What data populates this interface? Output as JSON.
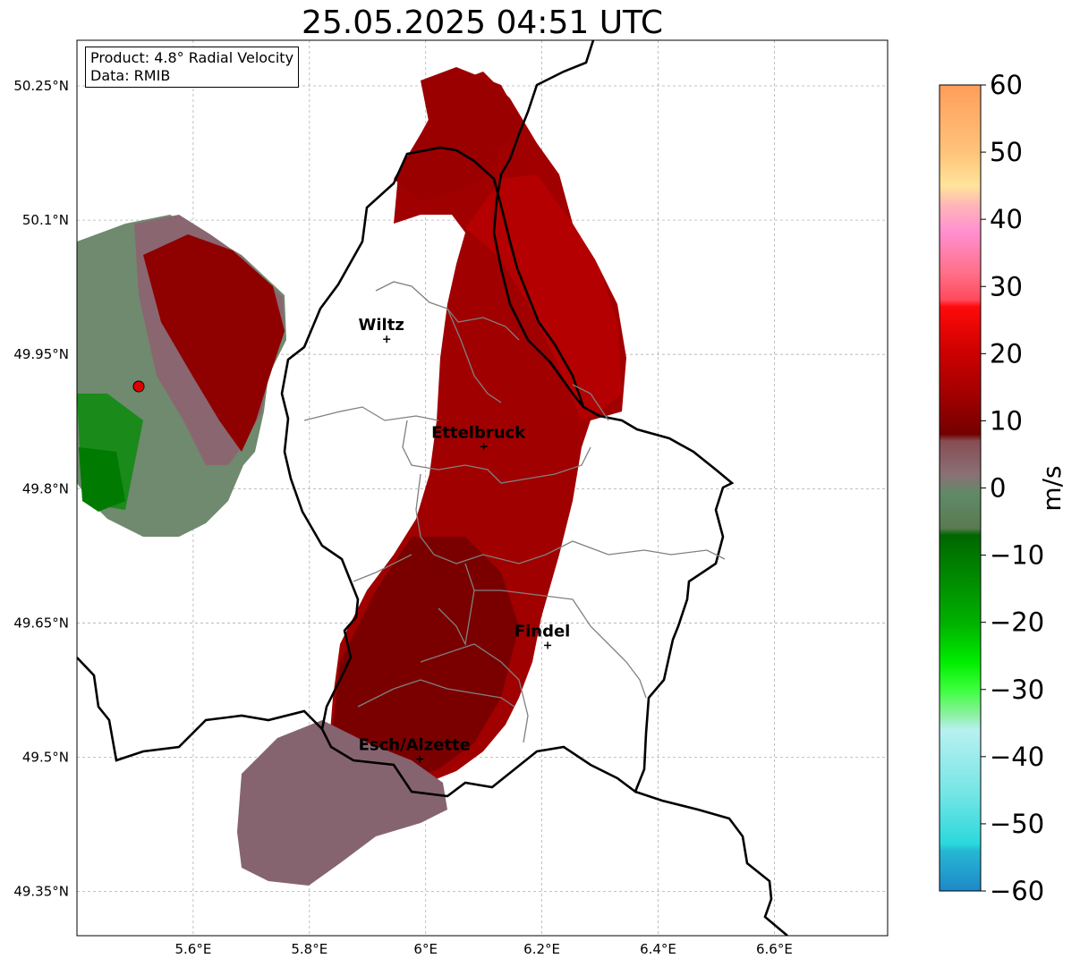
{
  "title": "25.05.2025 04:51 UTC",
  "info_box": {
    "product_line": "Product: 4.8° Radial Velocity",
    "data_line": "Data: RMIB"
  },
  "map": {
    "lon_ticks": [
      "5.6°E",
      "5.8°E",
      "6°E",
      "6.2°E",
      "6.4°E",
      "6.6°E"
    ],
    "lat_ticks": [
      "50.25°N",
      "50.1°N",
      "49.95°N",
      "49.8°N",
      "49.65°N",
      "49.5°N",
      "49.35°N"
    ],
    "cities": [
      {
        "name": "Wiltz",
        "lon": 5.933,
        "lat": 49.967
      },
      {
        "name": "Ettelbruck",
        "lon": 6.1,
        "lat": 49.847
      },
      {
        "name": "Findel",
        "lon": 6.21,
        "lat": 49.625
      },
      {
        "name": "Esch/Alzette",
        "lon": 5.99,
        "lat": 49.498
      }
    ],
    "radar_site": {
      "name": "radar-site",
      "lon": 5.505,
      "lat": 49.914
    },
    "colors": {
      "country_border": "#000000",
      "canton_border": "#808080",
      "grid": "#b0b0b0",
      "radar_marker": "#e00000"
    }
  },
  "colorbar": {
    "label": "m/s",
    "ticks": [
      "60",
      "50",
      "40",
      "30",
      "20",
      "10",
      "0",
      "−10",
      "−20",
      "−30",
      "−40",
      "−50",
      "−60"
    ],
    "range": [
      -60,
      60
    ],
    "stops": [
      {
        "v": 60,
        "c": "#ff9e5a"
      },
      {
        "v": 50,
        "c": "#ffc37a"
      },
      {
        "v": 45,
        "c": "#ffe49a"
      },
      {
        "v": 42,
        "c": "#ffb4b9"
      },
      {
        "v": 38,
        "c": "#ff8fcf"
      },
      {
        "v": 32,
        "c": "#ff6f88"
      },
      {
        "v": 28,
        "c": "#ff4a5c"
      },
      {
        "v": 27,
        "c": "#ff0a0a"
      },
      {
        "v": 20,
        "c": "#cc0000"
      },
      {
        "v": 14,
        "c": "#a30000"
      },
      {
        "v": 8,
        "c": "#730000"
      },
      {
        "v": 7,
        "c": "#874c53"
      },
      {
        "v": 2,
        "c": "#8a7176"
      },
      {
        "v": -1,
        "c": "#5f8a66"
      },
      {
        "v": -6,
        "c": "#5a7a52"
      },
      {
        "v": -7,
        "c": "#006600"
      },
      {
        "v": -20,
        "c": "#00b000"
      },
      {
        "v": -26,
        "c": "#00ee00"
      },
      {
        "v": -30,
        "c": "#3cff3c"
      },
      {
        "v": -34,
        "c": "#91f0a8"
      },
      {
        "v": -36,
        "c": "#b8f0f0"
      },
      {
        "v": -45,
        "c": "#79e6e6"
      },
      {
        "v": -53,
        "c": "#2ad8dc"
      },
      {
        "v": -54,
        "c": "#26b8d4"
      },
      {
        "v": -60,
        "c": "#1e88c8"
      }
    ]
  }
}
